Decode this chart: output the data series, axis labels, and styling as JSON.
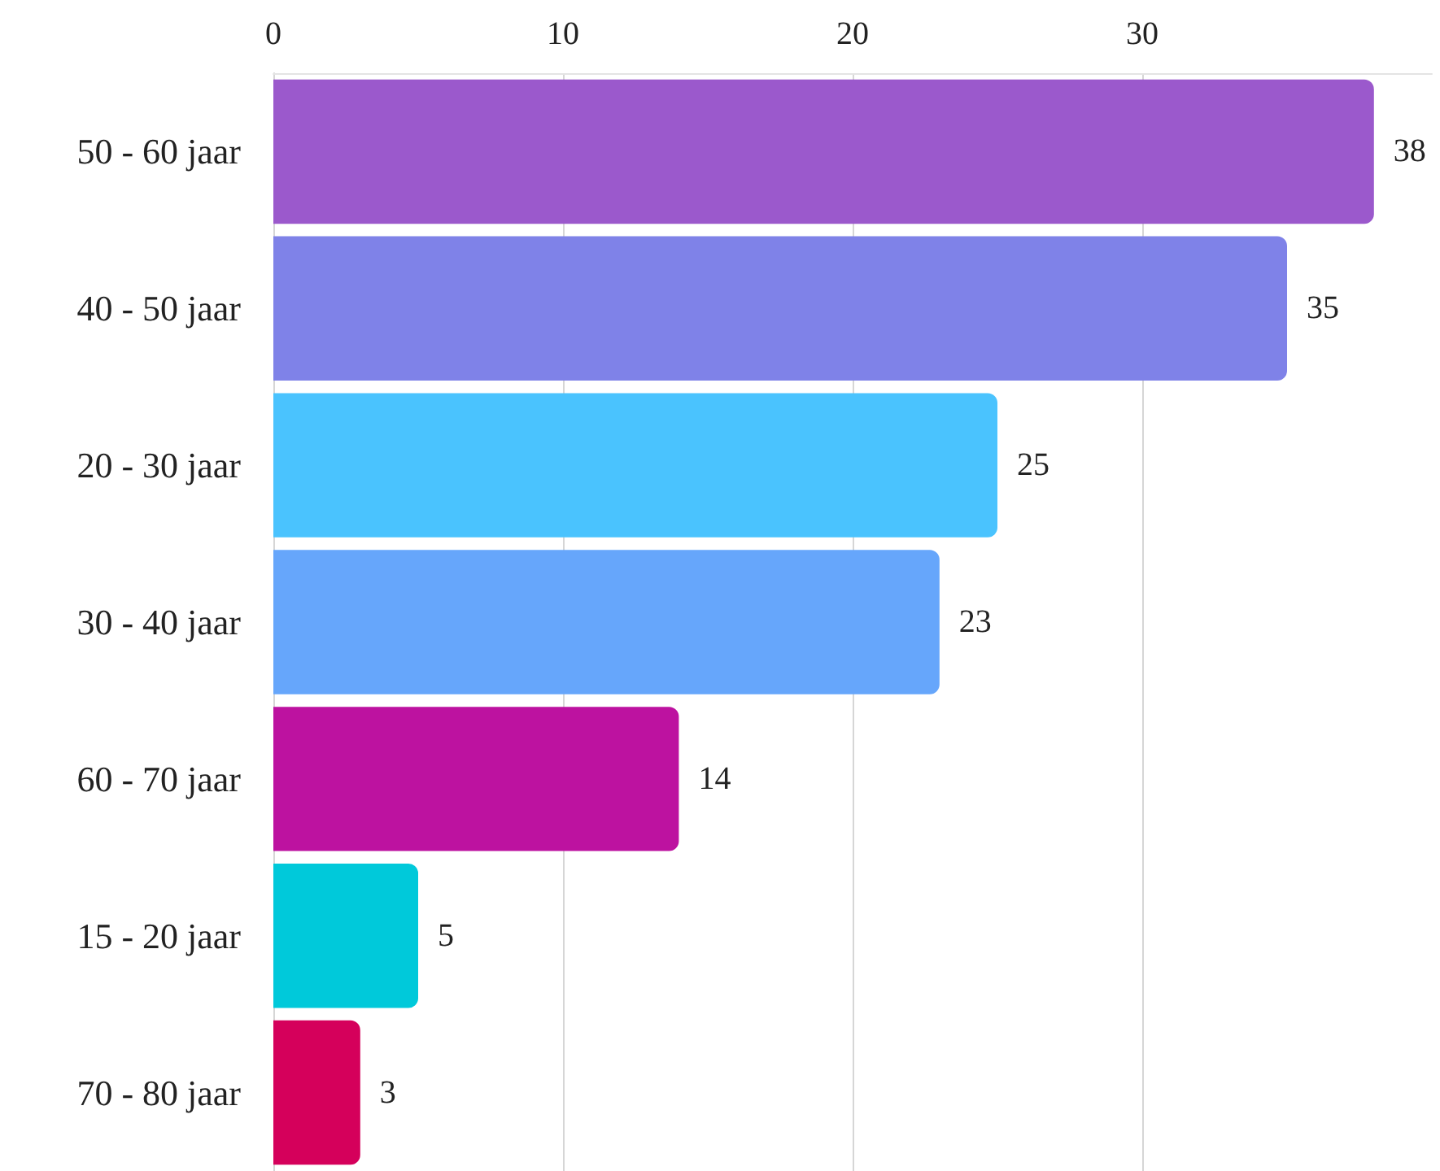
{
  "chart_data": {
    "type": "bar",
    "orientation": "horizontal",
    "categories": [
      "50 - 60 jaar",
      "40 - 50 jaar",
      "20 - 30 jaar",
      "30 - 40 jaar",
      "60 - 70 jaar",
      "15 - 20 jaar",
      "70 - 80 jaar"
    ],
    "values": [
      38,
      35,
      25,
      23,
      14,
      5,
      3
    ],
    "colors": [
      "#9b59cc",
      "#7f82e8",
      "#4ac3fe",
      "#66a6fb",
      "#bd12a0",
      "#00c9da",
      "#d5005b"
    ],
    "xlim": [
      0,
      40
    ],
    "xticks": [
      0,
      10,
      20,
      30
    ],
    "grid": "x",
    "data_labels": true
  }
}
